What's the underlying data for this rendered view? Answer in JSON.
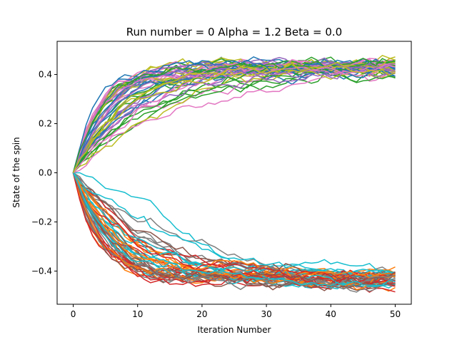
{
  "chart_data": {
    "type": "line",
    "title": "Run number = 0 Alpha = 1.2 Beta = 0.0",
    "xlabel": "Iteration Number",
    "ylabel": "State of the spin",
    "xlim": [
      -2.5,
      52.5
    ],
    "ylim": [
      -0.535,
      0.535
    ],
    "xticks": [
      0,
      10,
      20,
      30,
      40,
      50
    ],
    "xtick_labels": [
      "0",
      "10",
      "20",
      "30",
      "40",
      "50"
    ],
    "yticks": [
      -0.4,
      -0.2,
      0.0,
      0.2,
      0.4
    ],
    "ytick_labels": [
      "−0.4",
      "−0.2",
      "0.0",
      "0.2",
      "0.4"
    ],
    "grid": false,
    "legend": "none",
    "iterations": 51,
    "series_count": 100,
    "upper_plateau": 0.43,
    "lower_plateau": -0.43,
    "colors": [
      "#1f77b4",
      "#ff7f0e",
      "#2ca02c",
      "#d62728",
      "#9467bd",
      "#8c564b",
      "#e377c2",
      "#7f7f7f",
      "#bcbd22",
      "#17becf"
    ]
  }
}
